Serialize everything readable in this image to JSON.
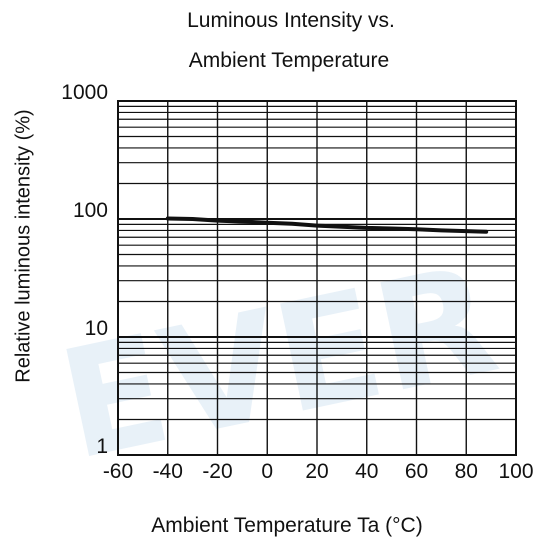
{
  "chart_data": {
    "type": "line",
    "title_line1": "Luminous Intensity vs.",
    "title_line2": "Ambient Temperature",
    "xlabel": "Ambient Temperature Ta (°C)",
    "ylabel": "Relative luminous intensity   (%)",
    "x_ticks": [
      "-60",
      "-40",
      "-20",
      "0",
      "20",
      "40",
      "60",
      "80",
      "100"
    ],
    "y_ticks": [
      "1",
      "10",
      "100",
      "1000"
    ],
    "xlim": [
      -60,
      100
    ],
    "ylim": [
      1,
      1000
    ],
    "y_scale": "log",
    "grid": true,
    "watermark": "EVER",
    "series": [
      {
        "x": [
          -40,
          -30,
          -20,
          -10,
          0,
          10,
          20,
          30,
          40,
          50,
          60,
          70,
          80,
          88
        ],
        "y": [
          101,
          100,
          97,
          95,
          93,
          91,
          88,
          86,
          84,
          83,
          82,
          80,
          79,
          78
        ]
      }
    ]
  }
}
